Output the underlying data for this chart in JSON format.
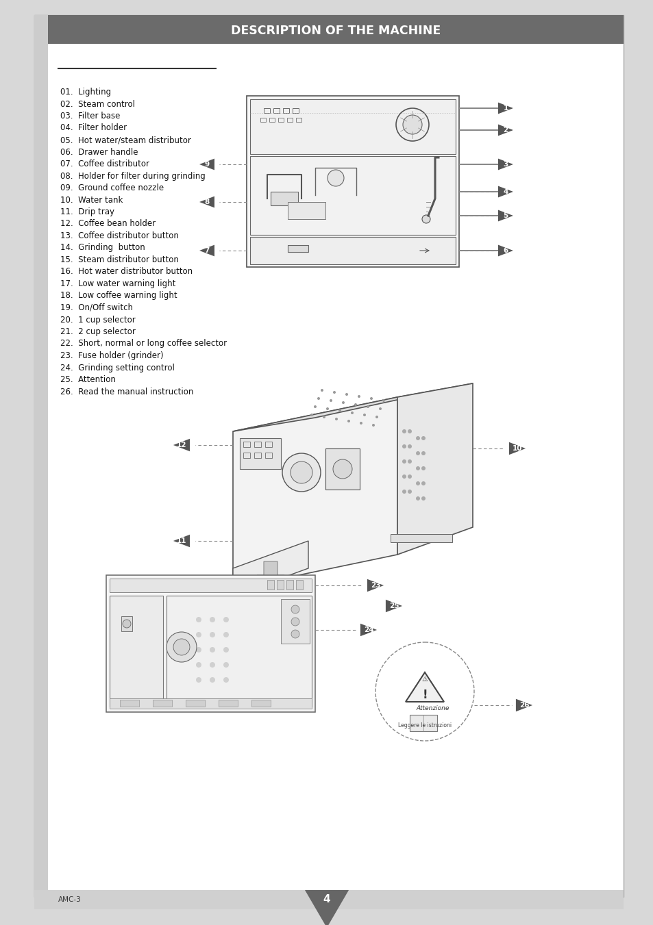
{
  "title": "DESCRIPTION OF THE MACHINE",
  "title_bg": "#6b6b6b",
  "title_color": "#ffffff",
  "page_bg": "#ffffff",
  "outer_bg": "#d8d8d8",
  "page_number": "4",
  "footer_text": "AMC-3",
  "items": [
    "01.  Lighting",
    "02.  Steam control",
    "03.  Filter base",
    "04.  Filter holder",
    "05.  Hot water/steam distributor",
    "06.  Drawer handle",
    "07.  Coffee distributor",
    "08.  Holder for filter during grinding",
    "09.  Ground coffee nozzle",
    "10.  Water tank",
    "11.  Drip tray",
    "12.  Coffee bean holder",
    "13.  Coffee distributor button",
    "14.  Grinding  button",
    "15.  Steam distributor button",
    "16.  Hot water distributor button",
    "17.  Low water warning light",
    "18.  Low coffee warning light",
    "19.  On/Off switch",
    "20.  1 cup selector",
    "21.  2 cup selector",
    "22.  Short, normal or long coffee selector",
    "23.  Fuse holder (grinder)",
    "24.  Grinding setting control",
    "25.  Attention",
    "26.  Read the manual instruction"
  ],
  "arrow_color": "#555555",
  "arrow_label_color": "#ffffff"
}
